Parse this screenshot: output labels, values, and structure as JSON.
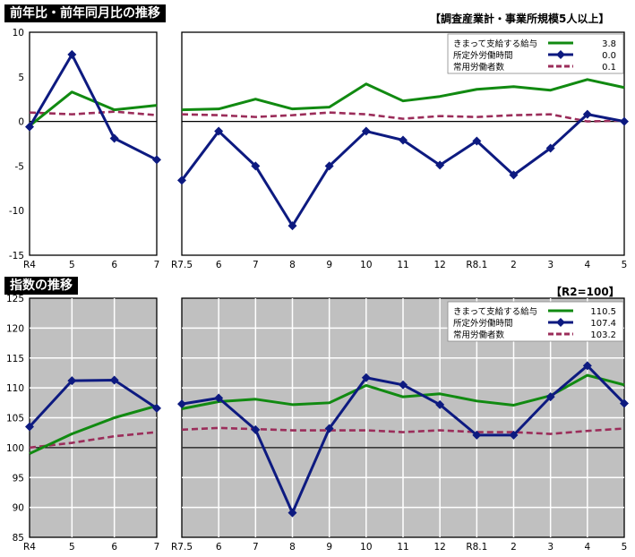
{
  "chart_data": [
    {
      "type": "line",
      "title": "前年比・前年同月比の推移",
      "note": "【調査産業計・事業所規模5人以上】",
      "unit_label": "(%)",
      "ylim": [
        -15,
        10
      ],
      "yticks": [
        "10",
        "5",
        "0",
        "-5",
        "-10",
        "-15"
      ],
      "grid": false,
      "legend_position": "top-right",
      "panels": [
        {
          "categories": [
            "R4",
            "5",
            "6",
            "7"
          ],
          "series": [
            {
              "name": "きまって支給する給与",
              "color": "#118a11",
              "style": "solid",
              "values": [
                -0.5,
                3.3,
                1.3,
                1.8
              ]
            },
            {
              "name": "所定外労働時間",
              "color": "#0d1a80",
              "style": "diamond",
              "values": [
                -0.6,
                7.5,
                -1.9,
                -4.3
              ]
            },
            {
              "name": "常用労働者数",
              "color": "#9b2d5a",
              "style": "dashed",
              "values": [
                1.0,
                0.8,
                1.1,
                0.7
              ]
            }
          ]
        },
        {
          "categories": [
            "R7.5",
            "6",
            "7",
            "8",
            "9",
            "10",
            "11",
            "12",
            "R8.1",
            "2",
            "3",
            "4",
            "5"
          ],
          "series": [
            {
              "name": "きまって支給する給与",
              "color": "#118a11",
              "style": "solid",
              "values": [
                1.3,
                1.4,
                2.5,
                1.4,
                1.6,
                4.2,
                2.3,
                2.8,
                3.6,
                3.9,
                3.5,
                4.7,
                3.8
              ]
            },
            {
              "name": "所定外労働時間",
              "color": "#0d1a80",
              "style": "diamond",
              "values": [
                -6.6,
                -1.1,
                -5.0,
                -11.7,
                -5.0,
                -1.1,
                -2.1,
                -4.9,
                -2.2,
                -6.0,
                -3.0,
                0.8,
                0.0
              ]
            },
            {
              "name": "常用労働者数",
              "color": "#9b2d5a",
              "style": "dashed",
              "values": [
                0.8,
                0.7,
                0.5,
                0.7,
                1.0,
                0.8,
                0.3,
                0.6,
                0.5,
                0.7,
                0.8,
                0.0,
                0.1
              ]
            }
          ]
        }
      ],
      "legend_values": [
        "3.8",
        "0.0",
        "0.1"
      ]
    },
    {
      "type": "line",
      "title": "指数の推移",
      "note": "【R2=100】",
      "ylim": [
        85,
        125
      ],
      "yticks": [
        "125",
        "120",
        "115",
        "110",
        "105",
        "100",
        "95",
        "90",
        "85"
      ],
      "grid": true,
      "background": "#c0c0c0",
      "legend_position": "top-right",
      "panels": [
        {
          "categories": [
            "R4",
            "5",
            "6",
            "7"
          ],
          "series": [
            {
              "name": "きまって支給する給与",
              "color": "#118a11",
              "style": "solid",
              "values": [
                99.0,
                102.3,
                105.0,
                107.0
              ]
            },
            {
              "name": "所定外労働時間",
              "color": "#0d1a80",
              "style": "diamond",
              "values": [
                103.5,
                111.2,
                111.3,
                106.6
              ]
            },
            {
              "name": "常用労働者数",
              "color": "#9b2d5a",
              "style": "dashed",
              "values": [
                100.0,
                100.8,
                101.9,
                102.6
              ]
            }
          ]
        },
        {
          "categories": [
            "R7.5",
            "6",
            "7",
            "8",
            "9",
            "10",
            "11",
            "12",
            "R8.1",
            "2",
            "3",
            "4",
            "5"
          ],
          "series": [
            {
              "name": "きまって支給する給与",
              "color": "#118a11",
              "style": "solid",
              "values": [
                106.5,
                107.7,
                108.1,
                107.2,
                107.5,
                110.4,
                108.5,
                109.0,
                107.8,
                107.1,
                108.7,
                112.1,
                110.5
              ]
            },
            {
              "name": "所定外労働時間",
              "color": "#0d1a80",
              "style": "diamond",
              "values": [
                107.3,
                108.3,
                103.0,
                89.1,
                103.2,
                111.7,
                110.5,
                107.2,
                102.1,
                102.1,
                108.5,
                113.7,
                107.4
              ]
            },
            {
              "name": "常用労働者数",
              "color": "#9b2d5a",
              "style": "dashed",
              "values": [
                103.0,
                103.3,
                103.1,
                102.9,
                102.9,
                102.9,
                102.6,
                102.9,
                102.6,
                102.6,
                102.3,
                102.8,
                103.2
              ]
            }
          ]
        }
      ],
      "legend_values": [
        "110.5",
        "107.4",
        "103.2"
      ]
    }
  ]
}
